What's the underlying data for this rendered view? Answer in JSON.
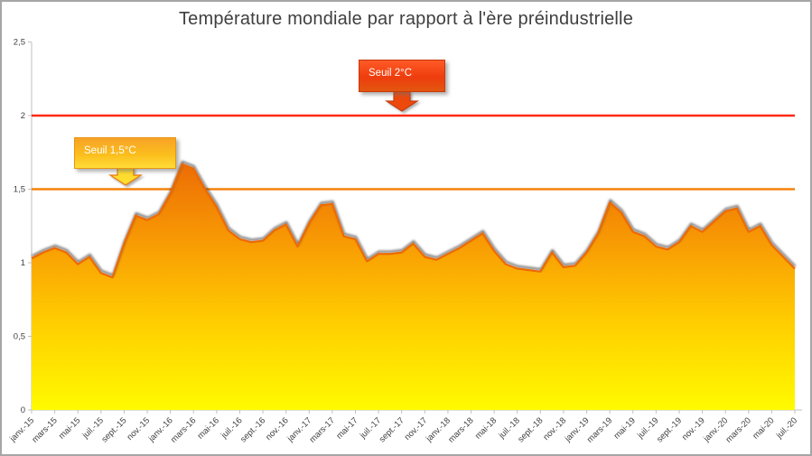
{
  "window": {
    "background": "#FFFFFF",
    "border_color": "#A6A6A6"
  },
  "chart_data": {
    "type": "area",
    "title": "Température mondiale par rapport à l'ère préindustrielle",
    "x_tick_labels": [
      "janv.-15",
      "mars-15",
      "mai-15",
      "juil.-15",
      "sept.-15",
      "nov.-15",
      "janv.-16",
      "mars-16",
      "mai-16",
      "juil.-16",
      "sept.-16",
      "nov.-16",
      "janv.-17",
      "mars-17",
      "mai-17",
      "juil.-17",
      "sept.-17",
      "nov.-17",
      "janv.-18",
      "mars-18",
      "mai-18",
      "juil.-18",
      "sept.-18",
      "nov.-18",
      "janv.-19",
      "mars-19",
      "mai-19",
      "juil.-19",
      "sept.-19",
      "nov.-19",
      "janv.-20",
      "mars-20",
      "mai-20",
      "juil.-20"
    ],
    "months_per_tick": 2,
    "n_points": 67,
    "values": [
      1.03,
      1.07,
      1.1,
      1.07,
      0.99,
      1.04,
      0.93,
      0.9,
      1.13,
      1.32,
      1.29,
      1.33,
      1.47,
      1.67,
      1.64,
      1.5,
      1.38,
      1.22,
      1.16,
      1.14,
      1.15,
      1.22,
      1.26,
      1.11,
      1.27,
      1.39,
      1.4,
      1.18,
      1.16,
      1.01,
      1.06,
      1.06,
      1.07,
      1.13,
      1.04,
      1.02,
      1.06,
      1.1,
      1.15,
      1.2,
      1.08,
      0.99,
      0.96,
      0.95,
      0.94,
      1.07,
      0.97,
      0.98,
      1.07,
      1.2,
      1.41,
      1.34,
      1.21,
      1.18,
      1.11,
      1.09,
      1.14,
      1.25,
      1.21,
      1.28,
      1.35,
      1.37,
      1.21,
      1.25,
      1.12,
      1.04,
      0.96
    ],
    "ylim": [
      0,
      2.5
    ],
    "y_tick_labels": [
      "0",
      "0,5",
      "1",
      "1,5",
      "2",
      "2,5"
    ],
    "grid": "off",
    "legend": "none",
    "area_gradient": [
      {
        "offset": 0,
        "color": "#ED6D05"
      },
      {
        "offset": 0.32,
        "color": "#F89B04"
      },
      {
        "offset": 0.65,
        "color": "#FFCE00"
      },
      {
        "offset": 1,
        "color": "#FFFB00"
      }
    ],
    "line_color": "#EC6B06",
    "axis_color": "#BFBFBF",
    "label_color": "#404040",
    "thresholds": [
      {
        "label": "Seuil 2°C",
        "value": 2,
        "line_color": "#FE2912"
      },
      {
        "label": "Seuil 1,5°C",
        "value": 1.5,
        "line_color": "#F5820C"
      }
    ]
  },
  "callouts": {
    "seuil2": {
      "text_color": "#FFFFFF",
      "gradient": [
        "#FF5A26",
        "#EE3D0E",
        "#E2570F"
      ],
      "border": "#C8380C",
      "arrow_fill": "#EE4A10",
      "arrow_border": "#C63C0C"
    },
    "seuil15": {
      "text_color": "#FFFFFF",
      "gradient": [
        "#F7A227",
        "#FBBE1C",
        "#FFDC38"
      ],
      "border": "#E8960F",
      "arrow_fill": "#FFDD2E",
      "arrow_border": "#E8780E"
    }
  }
}
